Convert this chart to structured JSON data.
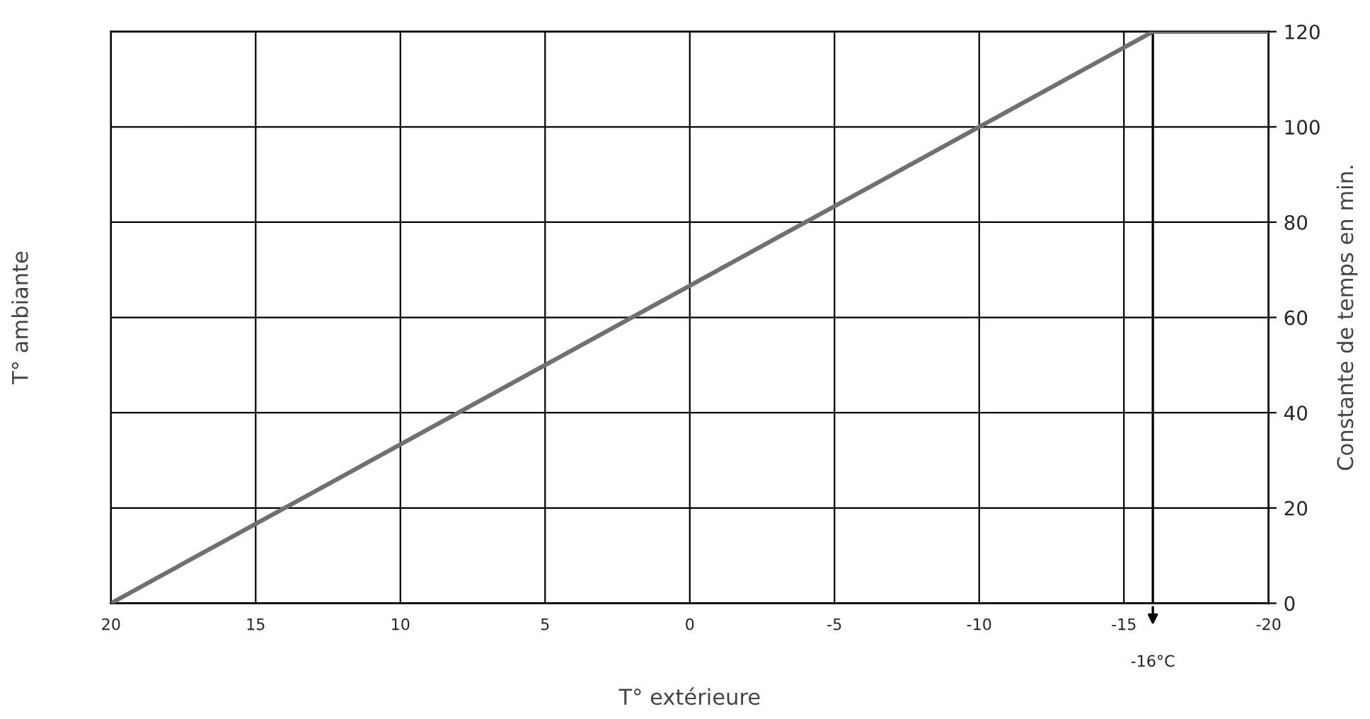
{
  "chart_data": {
    "type": "line",
    "xlabel": "T° extérieure",
    "ylabel": "T° ambiante",
    "y2label": "Constante de temps en min.",
    "x": [
      20,
      -16,
      -20
    ],
    "series": [
      {
        "color": "#707070",
        "values": [
          0,
          120,
          120
        ],
        "axis": "y2"
      }
    ],
    "xlim": [
      20,
      -20
    ],
    "xticks": [
      20,
      15,
      10,
      5,
      0,
      -5,
      -10,
      -15,
      -20
    ],
    "y2lim": [
      0,
      120
    ],
    "y2ticks": [
      0,
      20,
      40,
      60,
      80,
      100,
      120
    ],
    "ref_lines": [
      {
        "axis": "x",
        "value": -16,
        "label": "-16°C",
        "color": "#000000"
      }
    ],
    "grid": true,
    "marker": "none",
    "line_style": "solid"
  }
}
